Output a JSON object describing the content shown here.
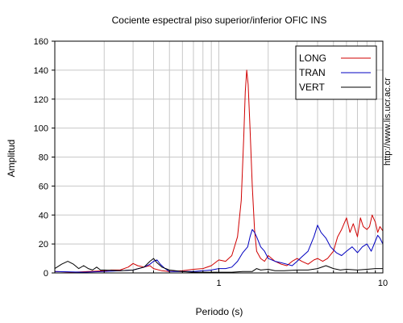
{
  "chart_data": {
    "type": "line",
    "title": "Cociente espectral piso superior/inferior  OFIC INS",
    "xlabel": "Periodo (s)",
    "ylabel": "Amplitud",
    "x_scale": "log",
    "xlim": [
      0.1,
      10
    ],
    "ylim": [
      0,
      160
    ],
    "grid": true,
    "legend_position": "top-right",
    "y_ticks": [
      0,
      20,
      40,
      60,
      80,
      100,
      120,
      140,
      160
    ],
    "x_tick_labels": [
      "1",
      "10"
    ],
    "series": [
      {
        "name": "LONG",
        "color": "#d00000",
        "points": [
          [
            0.1,
            1
          ],
          [
            0.13,
            0.5
          ],
          [
            0.16,
            1
          ],
          [
            0.2,
            1.5
          ],
          [
            0.22,
            2
          ],
          [
            0.25,
            2
          ],
          [
            0.28,
            4
          ],
          [
            0.3,
            6.5
          ],
          [
            0.32,
            5
          ],
          [
            0.35,
            4
          ],
          [
            0.38,
            5
          ],
          [
            0.4,
            3
          ],
          [
            0.45,
            1.5
          ],
          [
            0.5,
            1
          ],
          [
            0.6,
            1.5
          ],
          [
            0.7,
            2.5
          ],
          [
            0.8,
            3
          ],
          [
            0.9,
            5
          ],
          [
            1.0,
            9
          ],
          [
            1.1,
            8
          ],
          [
            1.2,
            12
          ],
          [
            1.3,
            25
          ],
          [
            1.37,
            50
          ],
          [
            1.42,
            95
          ],
          [
            1.45,
            125
          ],
          [
            1.48,
            140
          ],
          [
            1.51,
            130
          ],
          [
            1.55,
            100
          ],
          [
            1.6,
            60
          ],
          [
            1.65,
            30
          ],
          [
            1.7,
            15
          ],
          [
            1.8,
            10
          ],
          [
            1.9,
            8
          ],
          [
            2.0,
            12
          ],
          [
            2.2,
            8
          ],
          [
            2.4,
            6
          ],
          [
            2.6,
            5
          ],
          [
            2.8,
            8
          ],
          [
            3.0,
            10
          ],
          [
            3.2,
            8
          ],
          [
            3.5,
            6
          ],
          [
            3.8,
            9
          ],
          [
            4.0,
            10
          ],
          [
            4.3,
            8
          ],
          [
            4.6,
            10
          ],
          [
            5.0,
            15
          ],
          [
            5.3,
            25
          ],
          [
            5.6,
            30
          ],
          [
            6.0,
            38
          ],
          [
            6.3,
            28
          ],
          [
            6.6,
            34
          ],
          [
            7.0,
            25
          ],
          [
            7.3,
            38
          ],
          [
            7.6,
            32
          ],
          [
            8.0,
            30
          ],
          [
            8.3,
            32
          ],
          [
            8.6,
            40
          ],
          [
            9.0,
            35
          ],
          [
            9.3,
            28
          ],
          [
            9.6,
            32
          ],
          [
            10.0,
            29
          ]
        ]
      },
      {
        "name": "TRAN",
        "color": "#0000c0",
        "points": [
          [
            0.1,
            1
          ],
          [
            0.15,
            0.5
          ],
          [
            0.2,
            1
          ],
          [
            0.25,
            1.5
          ],
          [
            0.3,
            2
          ],
          [
            0.35,
            4
          ],
          [
            0.38,
            6
          ],
          [
            0.4,
            8
          ],
          [
            0.42,
            9
          ],
          [
            0.44,
            6
          ],
          [
            0.47,
            3
          ],
          [
            0.5,
            1
          ],
          [
            0.6,
            1
          ],
          [
            0.7,
            1
          ],
          [
            0.8,
            1.5
          ],
          [
            0.9,
            2
          ],
          [
            1.0,
            3
          ],
          [
            1.1,
            3
          ],
          [
            1.2,
            4
          ],
          [
            1.3,
            8
          ],
          [
            1.4,
            14
          ],
          [
            1.5,
            18
          ],
          [
            1.55,
            25
          ],
          [
            1.6,
            30
          ],
          [
            1.65,
            28
          ],
          [
            1.7,
            25
          ],
          [
            1.8,
            18
          ],
          [
            1.9,
            15
          ],
          [
            2.0,
            10
          ],
          [
            2.2,
            8
          ],
          [
            2.4,
            7
          ],
          [
            2.6,
            6
          ],
          [
            2.8,
            5
          ],
          [
            3.0,
            8
          ],
          [
            3.2,
            11
          ],
          [
            3.5,
            15
          ],
          [
            3.8,
            25
          ],
          [
            4.0,
            33
          ],
          [
            4.2,
            28
          ],
          [
            4.5,
            24
          ],
          [
            4.8,
            18
          ],
          [
            5.2,
            14
          ],
          [
            5.6,
            12
          ],
          [
            6.0,
            15
          ],
          [
            6.5,
            18
          ],
          [
            7.0,
            14
          ],
          [
            7.5,
            18
          ],
          [
            8.0,
            20
          ],
          [
            8.5,
            15
          ],
          [
            9.0,
            22
          ],
          [
            9.3,
            26
          ],
          [
            9.6,
            24
          ],
          [
            10.0,
            20
          ]
        ]
      },
      {
        "name": "VERT",
        "color": "#000000",
        "points": [
          [
            0.1,
            3
          ],
          [
            0.11,
            6
          ],
          [
            0.12,
            8
          ],
          [
            0.13,
            6
          ],
          [
            0.14,
            3
          ],
          [
            0.15,
            5
          ],
          [
            0.16,
            3
          ],
          [
            0.17,
            2
          ],
          [
            0.18,
            4
          ],
          [
            0.19,
            2
          ],
          [
            0.2,
            2
          ],
          [
            0.25,
            1.5
          ],
          [
            0.3,
            2
          ],
          [
            0.35,
            4
          ],
          [
            0.38,
            8
          ],
          [
            0.4,
            10
          ],
          [
            0.42,
            7
          ],
          [
            0.45,
            4
          ],
          [
            0.5,
            2
          ],
          [
            0.6,
            1
          ],
          [
            0.7,
            0.5
          ],
          [
            0.8,
            0.5
          ],
          [
            1.0,
            0.5
          ],
          [
            1.2,
            0.5
          ],
          [
            1.4,
            1
          ],
          [
            1.6,
            1
          ],
          [
            1.7,
            3
          ],
          [
            1.8,
            2
          ],
          [
            2.0,
            2.5
          ],
          [
            2.2,
            1.5
          ],
          [
            2.5,
            1.5
          ],
          [
            3.0,
            2
          ],
          [
            3.5,
            2
          ],
          [
            4.0,
            3
          ],
          [
            4.5,
            5
          ],
          [
            5.0,
            3
          ],
          [
            5.5,
            2
          ],
          [
            6.0,
            2.5
          ],
          [
            7.0,
            2
          ],
          [
            8.0,
            2.5
          ],
          [
            9.0,
            3
          ],
          [
            10.0,
            3
          ]
        ]
      }
    ]
  },
  "side_text": "http://www.lis.ucr.ac.cr"
}
